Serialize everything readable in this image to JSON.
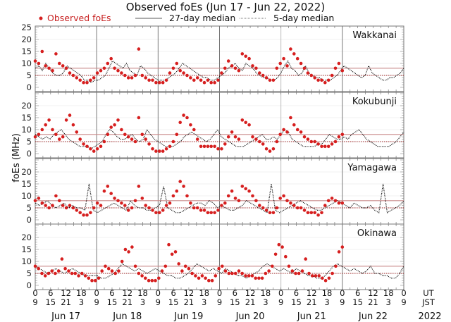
{
  "chart_data": {
    "type": "scatter",
    "title": "Observed foEs (Jun 17 - Jun 22, 2022)",
    "ylabel": "foEs (MHz)",
    "ylim": [
      0,
      25
    ],
    "yticks": [
      0,
      5,
      10,
      15,
      20,
      25
    ],
    "panel_yticks": [
      0,
      5,
      10,
      15,
      20
    ],
    "legend": {
      "placement": "top",
      "observed": "Observed foEs",
      "median27": "27-day median",
      "median5": "5-day median"
    },
    "colors": {
      "observed": "#d61f1f",
      "median27_line": "#c98888",
      "median5_line": "#9b1c1c",
      "median_curve": "#000000",
      "day_line": "#777777"
    },
    "x_axis": {
      "ut_label": "UT",
      "jst_label": "JST",
      "year_label": "2022",
      "ut_ticks": [
        "0",
        "6",
        "12",
        "18",
        "0",
        "6",
        "12",
        "18",
        "0",
        "6",
        "12",
        "18",
        "0",
        "6",
        "12",
        "18",
        "0",
        "6",
        "12",
        "18",
        "0",
        "6",
        "12",
        "18",
        "0"
      ],
      "jst_ticks": [
        "9",
        "15",
        "21",
        "3",
        "9",
        "15",
        "21",
        "3",
        "9",
        "15",
        "21",
        "3",
        "9",
        "15",
        "21",
        "3",
        "9",
        "15",
        "21",
        "3",
        "9",
        "15",
        "21",
        "3",
        "9"
      ],
      "days": [
        "Jun 17",
        "Jun 18",
        "Jun 19",
        "Jun 20",
        "Jun 21",
        "Jun 22"
      ],
      "hours_range": [
        0,
        144
      ]
    },
    "panels": [
      {
        "station": "Wakkanai",
        "median27": 8,
        "median5": 5,
        "observed_hours_end": 120,
        "observed": [
          11,
          10,
          15,
          9,
          8,
          7,
          14,
          10,
          9,
          8,
          6,
          5,
          4,
          3,
          2,
          2,
          3,
          4,
          6,
          7,
          8,
          10,
          12,
          8,
          7,
          6,
          5,
          4,
          4,
          5,
          16,
          5,
          4,
          3,
          3,
          2,
          2,
          2,
          3,
          6,
          8,
          10,
          7,
          6,
          5,
          4,
          3,
          4,
          3,
          2,
          3,
          2,
          2,
          3,
          6,
          8,
          11,
          9,
          8,
          7,
          14,
          13,
          12,
          9,
          8,
          6,
          5,
          4,
          3,
          3,
          8,
          10,
          12,
          9,
          16,
          14,
          12,
          10,
          8,
          6,
          5,
          4,
          3,
          3,
          2,
          3,
          5,
          8,
          10,
          7
        ],
        "curve": [
          8,
          9,
          7,
          10,
          8,
          6,
          5,
          5,
          6,
          9,
          8,
          7,
          6,
          5,
          3,
          3,
          2,
          3,
          3,
          4,
          5,
          8,
          11,
          10,
          9,
          8,
          10,
          7,
          6,
          5,
          9,
          8,
          6,
          5,
          4,
          3,
          3,
          3,
          4,
          5,
          6,
          8,
          10,
          9,
          8,
          7,
          6,
          5,
          4,
          4,
          3,
          3,
          4,
          5,
          6,
          8,
          9,
          10,
          8,
          7,
          10,
          9,
          8,
          6,
          5,
          4,
          4,
          3,
          3,
          4,
          6,
          9,
          11,
          8,
          7,
          5,
          6,
          9,
          6,
          5,
          4,
          4,
          3,
          3,
          3,
          4,
          5,
          7,
          9,
          8,
          7,
          6,
          5,
          4,
          5,
          9,
          6,
          5,
          4,
          3,
          3,
          4,
          4,
          5,
          6,
          8
        ]
      },
      {
        "station": "Kokubunji",
        "median27": 8,
        "median5": 5,
        "observed_hours_end": 120,
        "observed": [
          7,
          8,
          10,
          12,
          14,
          10,
          8,
          6,
          7,
          14,
          16,
          12,
          9,
          6,
          4,
          3,
          2,
          1,
          2,
          3,
          5,
          8,
          11,
          12,
          14,
          10,
          8,
          7,
          6,
          5,
          15,
          8,
          6,
          4,
          2,
          1,
          1,
          1,
          2,
          3,
          5,
          8,
          13,
          16,
          15,
          12,
          10,
          6,
          3,
          3,
          3,
          3,
          3,
          2,
          2,
          4,
          7,
          9,
          7,
          6,
          14,
          13,
          12,
          7,
          6,
          5,
          4,
          2,
          1,
          2,
          5,
          8,
          10,
          9,
          15,
          12,
          10,
          9,
          7,
          6,
          5,
          5,
          4,
          3,
          3,
          3,
          4,
          5,
          7,
          8
        ],
        "curve": [
          8,
          7,
          6,
          7,
          6,
          8,
          9,
          10,
          8,
          6,
          5,
          4,
          3,
          3,
          3,
          2,
          3,
          4,
          5,
          8,
          10,
          9,
          7,
          6,
          6,
          7,
          8,
          6,
          5,
          6,
          10,
          8,
          6,
          5,
          4,
          3,
          3,
          3,
          4,
          5,
          7,
          8,
          9,
          8,
          7,
          6,
          5,
          6,
          8,
          10,
          7,
          6,
          5,
          4,
          3,
          3,
          3,
          4,
          5,
          6,
          7,
          8,
          6,
          6,
          7,
          6,
          8,
          10,
          9,
          6,
          5,
          4,
          3,
          3,
          3,
          3,
          4,
          4,
          6,
          8,
          7,
          6,
          6,
          7,
          6,
          8,
          9,
          10,
          8,
          6,
          5,
          4,
          3,
          3,
          3,
          3,
          4,
          5,
          7,
          9
        ]
      },
      {
        "station": "Yamagawa",
        "median27": 8,
        "median5": 5,
        "observed_hours_end": 120,
        "observed": [
          8,
          9,
          7,
          6,
          5,
          6,
          10,
          8,
          6,
          5,
          6,
          5,
          4,
          3,
          2,
          2,
          3,
          5,
          7,
          6,
          12,
          14,
          11,
          9,
          8,
          7,
          6,
          4,
          5,
          8,
          14,
          9,
          6,
          5,
          4,
          3,
          3,
          4,
          6,
          7,
          10,
          12,
          16,
          14,
          10,
          7,
          5,
          5,
          4,
          4,
          3,
          3,
          3,
          4,
          6,
          7,
          10,
          12,
          9,
          8,
          14,
          13,
          12,
          10,
          8,
          6,
          5,
          4,
          3,
          3,
          5,
          9,
          10,
          8,
          7,
          6,
          5,
          5,
          4,
          3,
          3,
          3,
          2,
          3,
          6,
          8,
          9,
          8,
          7,
          7
        ],
        "curve": [
          7,
          6,
          7,
          8,
          6,
          5,
          6,
          7,
          5,
          6,
          5,
          5,
          4,
          15,
          4,
          3,
          4,
          5,
          6,
          7,
          6,
          5,
          4,
          8,
          6,
          5,
          5,
          4,
          4,
          5,
          6,
          14,
          5,
          4,
          3,
          3,
          4,
          5,
          6,
          7,
          7,
          6,
          8,
          7,
          5,
          6,
          5,
          4,
          4,
          5,
          6,
          8,
          7,
          6,
          5,
          4,
          3,
          15,
          4,
          3,
          4,
          5,
          6,
          7,
          8,
          7,
          6,
          5,
          4,
          4,
          5,
          6,
          7,
          8,
          7,
          6,
          5,
          7,
          6,
          5,
          5,
          6,
          4,
          3,
          15,
          3,
          4,
          5,
          6,
          8
        ]
      },
      {
        "station": "Okinawa",
        "median27": 8,
        "median5": 5,
        "observed_hours_end": 120,
        "observed": [
          8,
          7,
          5,
          4,
          5,
          6,
          5,
          6,
          11,
          7,
          6,
          5,
          5,
          4,
          5,
          4,
          3,
          2,
          2,
          3,
          6,
          8,
          7,
          6,
          5,
          6,
          10,
          15,
          14,
          16,
          8,
          5,
          4,
          3,
          2,
          2,
          2,
          3,
          6,
          8,
          17,
          13,
          14,
          9,
          6,
          8,
          7,
          5,
          4,
          3,
          4,
          3,
          2,
          2,
          4,
          7,
          8,
          6,
          5,
          5,
          5,
          6,
          5,
          4,
          4,
          4,
          3,
          3,
          3,
          5,
          6,
          8,
          13,
          17,
          16,
          12,
          8,
          6,
          5,
          5,
          6,
          11,
          5,
          4,
          4,
          4,
          3,
          2,
          3,
          5,
          8,
          14,
          16
        ],
        "curve": [
          8,
          7,
          6,
          5,
          6,
          7,
          6,
          5,
          6,
          7,
          6,
          5,
          4,
          4,
          4,
          4,
          3,
          3,
          4,
          5,
          7,
          9,
          8,
          7,
          6,
          7,
          6,
          5,
          6,
          7,
          6,
          5,
          4,
          4,
          3,
          3,
          4,
          5,
          7,
          9,
          8,
          7,
          6,
          7,
          6,
          5,
          7,
          6,
          5,
          4,
          4,
          3,
          4,
          5,
          6,
          8,
          9,
          8,
          7,
          6,
          7,
          6,
          5,
          7,
          6,
          5,
          4,
          4,
          3,
          3,
          4,
          6,
          8,
          9,
          8,
          7,
          6,
          7,
          6,
          5,
          6,
          8,
          5,
          5,
          4,
          4,
          3,
          3,
          5,
          8
        ]
      }
    ]
  }
}
